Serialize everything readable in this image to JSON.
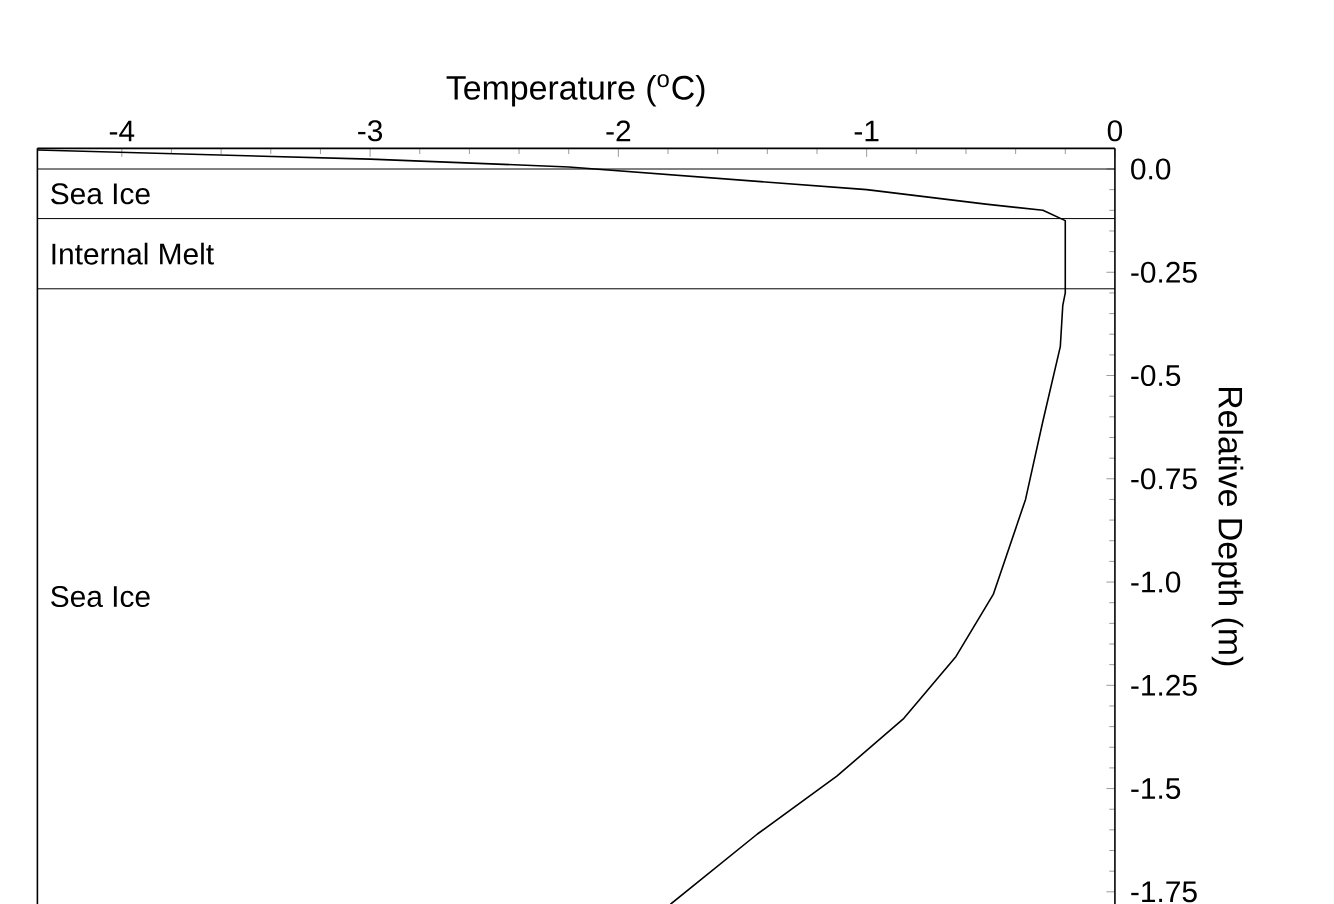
{
  "chart_data": {
    "type": "line",
    "xlabel": "Temperature ($^{o}$C)",
    "ylabel": "Relative Depth (m)",
    "xlim": [
      -4.34,
      0
    ],
    "ylim": [
      -1.78,
      0.05
    ],
    "xticks": [
      -4,
      -3,
      -2,
      -1,
      0
    ],
    "yticks": [
      {
        "value": 0,
        "label": "0.0"
      },
      -0.25,
      -0.5,
      -0.75,
      {
        "value": -1,
        "label": "-1.0"
      },
      -1.25,
      -1.5,
      -1.75
    ],
    "series": [
      {
        "color": "#000000",
        "x": [
          -4.34,
          -3,
          -2.2,
          -1,
          -0.52,
          -0.29,
          -0.2,
          -0.2,
          -0.21,
          -0.22,
          -0.29,
          -0.36,
          -0.49,
          -0.64,
          -0.85,
          -1.12,
          -1.44,
          -1.79
        ],
        "values": [
          0.046,
          0.024,
          0.005,
          -0.05,
          -0.085,
          -0.1,
          -0.125,
          -0.3,
          -0.33,
          -0.43,
          -0.61,
          -0.8,
          -1.03,
          -1.18,
          -1.33,
          -1.47,
          -1.61,
          -1.78
        ]
      }
    ],
    "ref_lines": [
      {
        "axis": "y",
        "value": 0
      },
      {
        "axis": "y",
        "value": -0.12
      },
      {
        "axis": "y",
        "value": -0.29
      }
    ],
    "annotations": [
      "Sea Ice",
      "Internal Melt",
      "Sea Ice"
    ],
    "marker": "none",
    "line_style": "solid"
  }
}
